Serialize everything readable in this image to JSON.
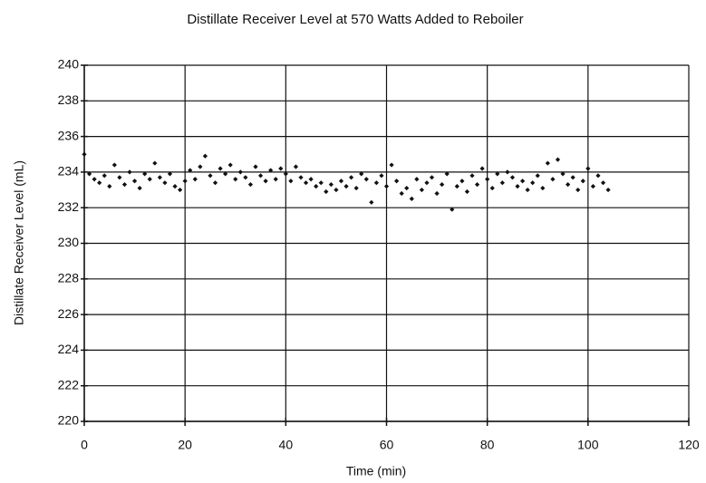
{
  "chart_data": {
    "type": "scatter",
    "title": "Distillate Receiver Level at 570 Watts Added to Reboiler",
    "x_label": "Time (min)",
    "y_label": "Distillate Receiver Level (mL)",
    "xlim": [
      0,
      120
    ],
    "xticks": [
      0,
      20,
      40,
      60,
      80,
      100,
      120
    ],
    "ylim": [
      220,
      240
    ],
    "yticks": [
      220,
      222,
      224,
      226,
      228,
      230,
      232,
      234,
      236,
      238,
      240
    ],
    "grid": true,
    "color": "#111111",
    "x": [
      0,
      1,
      2,
      3,
      4,
      5,
      6,
      7,
      8,
      9,
      10,
      11,
      12,
      13,
      14,
      15,
      16,
      17,
      18,
      19,
      20,
      21,
      22,
      23,
      24,
      25,
      26,
      27,
      28,
      29,
      30,
      31,
      32,
      33,
      34,
      35,
      36,
      37,
      38,
      39,
      40,
      41,
      42,
      43,
      44,
      45,
      46,
      47,
      48,
      49,
      50,
      51,
      52,
      53,
      54,
      55,
      56,
      57,
      58,
      59,
      60,
      61,
      62,
      63,
      64,
      65,
      66,
      67,
      68,
      69,
      70,
      71,
      72,
      73,
      74,
      75,
      76,
      77,
      78,
      79,
      80,
      81,
      82,
      83,
      84,
      85,
      86,
      87,
      88,
      89,
      90,
      91,
      92,
      93,
      94,
      95,
      96,
      97,
      98,
      99,
      100,
      101,
      102,
      103,
      104
    ],
    "values": [
      235.0,
      233.9,
      233.6,
      233.4,
      233.8,
      233.2,
      234.4,
      233.7,
      233.3,
      234.0,
      233.5,
      233.1,
      233.9,
      233.6,
      234.5,
      233.7,
      233.4,
      233.9,
      233.2,
      233.0,
      233.5,
      234.1,
      233.6,
      234.3,
      234.9,
      233.8,
      233.4,
      234.2,
      233.9,
      234.4,
      233.6,
      234.0,
      233.7,
      233.3,
      234.3,
      233.8,
      233.5,
      234.1,
      233.6,
      234.2,
      233.9,
      233.5,
      234.3,
      233.7,
      233.4,
      233.6,
      233.2,
      233.4,
      232.9,
      233.3,
      233.0,
      233.5,
      233.2,
      233.7,
      233.1,
      233.9,
      233.6,
      232.3,
      233.4,
      233.8,
      233.2,
      234.4,
      233.5,
      232.8,
      233.1,
      232.5,
      233.6,
      233.0,
      233.4,
      233.7,
      232.8,
      233.3,
      233.9,
      231.9,
      233.2,
      233.5,
      232.9,
      233.8,
      233.3,
      234.2,
      233.6,
      233.1,
      233.9,
      233.4,
      234.0,
      233.7,
      233.2,
      233.5,
      233.0,
      233.4,
      233.8,
      233.1,
      234.5,
      233.6,
      234.7,
      233.9,
      233.3,
      233.7,
      233.0,
      233.5,
      234.2,
      233.2,
      233.8,
      233.4,
      233.0
    ]
  }
}
